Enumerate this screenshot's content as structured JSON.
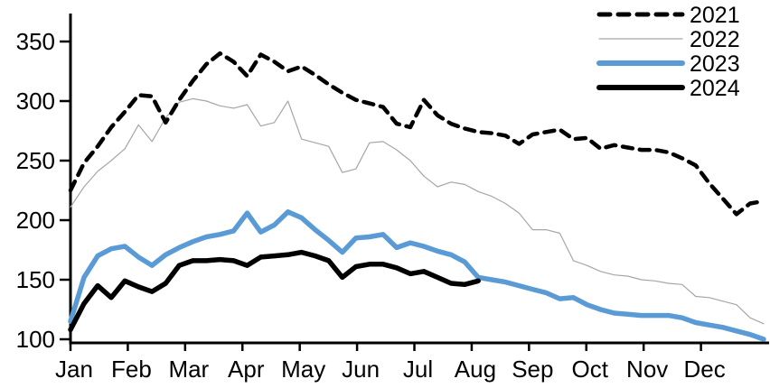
{
  "chart_data": {
    "type": "line",
    "title": "",
    "xlabel": "",
    "ylabel": "",
    "grid": false,
    "legend_position": "top-right",
    "x_unit": "weeks (Jan-Dec)",
    "x_axis": {
      "month_labels": [
        "Jan",
        "Feb",
        "Mar",
        "Apr",
        "May",
        "Jun",
        "Jul",
        "Aug",
        "Sep",
        "Oct",
        "Nov",
        "Dec"
      ]
    },
    "y_axis": {
      "min": 100,
      "max": 350,
      "tick_labels": [
        "100",
        "150",
        "200",
        "250",
        "300",
        "350"
      ],
      "ticks": [
        100,
        150,
        200,
        250,
        300,
        350
      ]
    },
    "series": [
      {
        "name": "2021",
        "color": "#000000",
        "style": "dashed",
        "width": 4.5,
        "values": [
          225,
          248,
          262,
          278,
          291,
          305,
          304,
          282,
          301,
          317,
          331,
          340,
          333,
          321,
          339,
          333,
          325,
          329,
          322,
          314,
          307,
          301,
          298,
          295,
          281,
          278,
          301,
          288,
          281,
          277,
          274,
          273,
          271,
          264,
          272,
          274,
          276,
          268,
          269,
          260,
          263,
          261,
          259,
          259,
          257,
          252,
          246,
          231,
          218,
          205,
          214,
          216
        ]
      },
      {
        "name": "2022",
        "color": "#a6a6a6",
        "style": "solid-thin",
        "width": 1.2,
        "values": [
          211,
          228,
          241,
          250,
          260,
          280,
          266,
          286,
          299,
          302,
          300,
          296,
          294,
          297,
          279,
          282,
          300,
          268,
          265,
          262,
          240,
          243,
          265,
          266,
          259,
          250,
          237,
          228,
          232,
          230,
          224,
          220,
          214,
          206,
          192,
          192,
          189,
          166,
          162,
          157,
          154,
          153,
          150,
          149,
          147,
          146,
          136,
          135,
          132,
          129,
          118,
          113
        ]
      },
      {
        "name": "2023",
        "color": "#5B9BD5",
        "style": "solid-thick",
        "width": 5.5,
        "values": [
          115,
          152,
          170,
          176,
          178,
          169,
          162,
          171,
          177,
          182,
          186,
          188,
          191,
          206,
          190,
          196,
          207,
          202,
          192,
          183,
          173,
          185,
          186,
          188,
          177,
          181,
          178,
          174,
          171,
          165,
          152,
          150,
          148,
          145,
          142,
          139,
          134,
          135,
          129,
          125,
          122,
          121,
          120,
          120,
          120,
          118,
          114,
          112,
          110,
          107,
          104,
          100
        ]
      },
      {
        "name": "2024",
        "color": "#000000",
        "style": "solid-thick",
        "width": 5.5,
        "values": [
          108,
          130,
          145,
          135,
          149,
          144,
          140,
          147,
          162,
          166,
          166,
          167,
          166,
          162,
          169,
          170,
          171,
          173,
          170,
          166,
          152,
          161,
          163,
          163,
          160,
          155,
          157,
          152,
          147,
          146,
          149
        ]
      }
    ],
    "legend": [
      {
        "label": "2021"
      },
      {
        "label": "2022"
      },
      {
        "label": "2023"
      },
      {
        "label": "2024"
      }
    ]
  }
}
